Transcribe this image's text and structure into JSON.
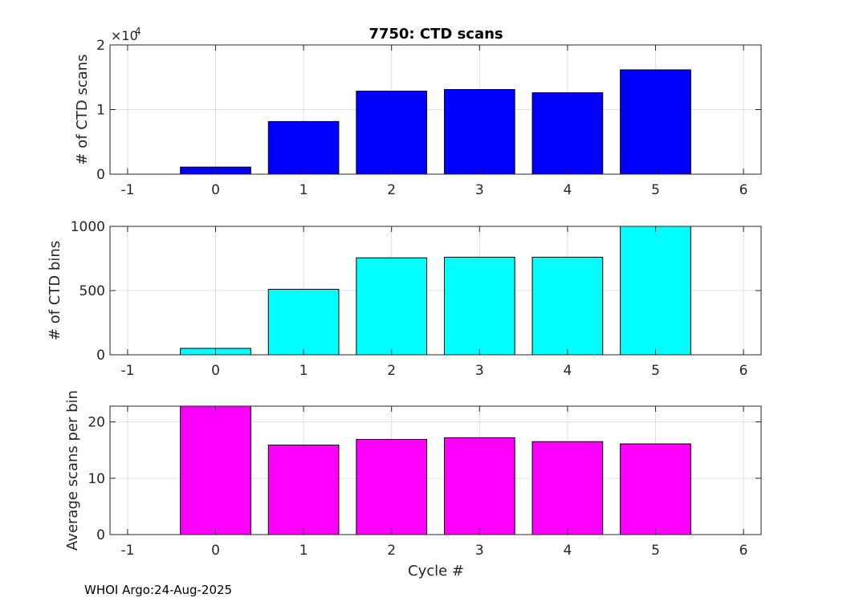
{
  "figure": {
    "title": "7750: CTD scans",
    "xlabel": "Cycle #",
    "footer": "WHOI Argo:24-Aug-2025"
  },
  "chart_data": [
    {
      "type": "bar",
      "title": "7750: CTD scans",
      "ylabel": "# of CTD scans",
      "multiplier_label": "×10",
      "multiplier_exponent": "4",
      "x": [
        0,
        1,
        2,
        3,
        4,
        5
      ],
      "values": [
        1100,
        8150,
        12850,
        13100,
        12600,
        16150
      ],
      "xlim": [
        -1.2,
        6.2
      ],
      "ylim": [
        0,
        20000
      ],
      "xticks": [
        -1,
        0,
        1,
        2,
        3,
        4,
        5,
        6
      ],
      "yticks": [
        0,
        10000,
        20000
      ],
      "ytick_labels": [
        "0",
        "1",
        "2"
      ],
      "color": "#0000ff",
      "grid": true
    },
    {
      "type": "bar",
      "ylabel": "# of CTD bins",
      "x": [
        0,
        1,
        2,
        3,
        4,
        5
      ],
      "values": [
        50,
        510,
        755,
        760,
        760,
        1000
      ],
      "xlim": [
        -1.2,
        6.2
      ],
      "ylim": [
        0,
        1000
      ],
      "xticks": [
        -1,
        0,
        1,
        2,
        3,
        4,
        5,
        6
      ],
      "yticks": [
        0,
        500,
        1000
      ],
      "ytick_labels": [
        "0",
        "500",
        "1000"
      ],
      "color": "#00ffff",
      "grid": true
    },
    {
      "type": "bar",
      "ylabel": "Average scans per bin",
      "xlabel": "Cycle #",
      "x": [
        0,
        1,
        2,
        3,
        4,
        5
      ],
      "values": [
        22.8,
        15.9,
        16.9,
        17.2,
        16.5,
        16.1
      ],
      "xlim": [
        -1.2,
        6.2
      ],
      "ylim": [
        0,
        22.8
      ],
      "xticks": [
        -1,
        0,
        1,
        2,
        3,
        4,
        5,
        6
      ],
      "yticks": [
        0,
        10,
        20
      ],
      "ytick_labels": [
        "0",
        "10",
        "20"
      ],
      "color": "#ff00ff",
      "grid": true
    }
  ]
}
